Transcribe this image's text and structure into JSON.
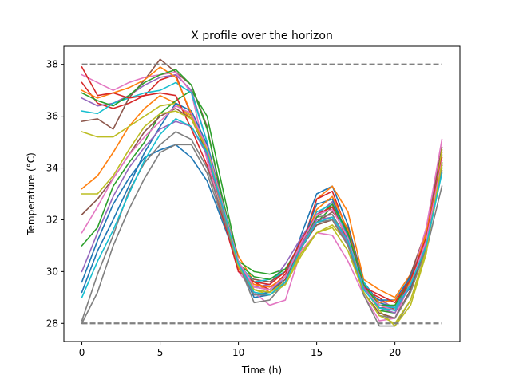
{
  "chart_data": {
    "type": "line",
    "title": "X profile over the horizon",
    "xlabel": "Time (h)",
    "ylabel": "Temperature (°C)",
    "xlim": [
      -1.15,
      24.15
    ],
    "ylim": [
      27.3,
      38.7
    ],
    "xticks": [
      0,
      5,
      10,
      15,
      20
    ],
    "yticks": [
      28,
      30,
      32,
      34,
      36,
      38
    ],
    "grid": false,
    "legend": "none",
    "bounds": {
      "color": "#808080",
      "lower": {
        "value": 28,
        "x": [
          0,
          23
        ]
      },
      "upper": {
        "value": 38,
        "x": [
          0,
          23
        ]
      }
    },
    "x": [
      0,
      1,
      2,
      3,
      4,
      5,
      6,
      7,
      8,
      9,
      10,
      11,
      12,
      13,
      14,
      15,
      16,
      17,
      18,
      19,
      20,
      21,
      22,
      23
    ],
    "series": [
      {
        "color": "#1f77b4",
        "values": [
          29.6,
          31.2,
          32.6,
          33.6,
          34.4,
          34.7,
          34.9,
          34.4,
          33.5,
          31.9,
          30.3,
          29.0,
          29.1,
          29.5,
          31.4,
          33.0,
          33.3,
          31.8,
          29.6,
          28.8,
          28.6,
          29.4,
          31.0,
          34.0
        ]
      },
      {
        "color": "#ff7f0e",
        "values": [
          33.2,
          33.7,
          34.6,
          35.6,
          36.3,
          36.8,
          36.5,
          35.9,
          34.6,
          32.5,
          30.6,
          29.6,
          29.2,
          29.6,
          30.8,
          32.8,
          33.3,
          32.3,
          29.7,
          29.3,
          29.0,
          29.9,
          31.4,
          34.1
        ]
      },
      {
        "color": "#2ca02c",
        "values": [
          31.0,
          31.7,
          33.3,
          34.2,
          35.0,
          36.1,
          36.6,
          37.0,
          36.0,
          33.2,
          30.4,
          30.0,
          29.9,
          30.1,
          31.0,
          31.9,
          32.5,
          31.5,
          29.4,
          28.5,
          28.4,
          29.6,
          31.1,
          34.0
        ]
      },
      {
        "color": "#d62728",
        "values": [
          37.3,
          36.5,
          36.3,
          36.5,
          36.8,
          37.4,
          37.6,
          36.0,
          34.5,
          32.3,
          30.0,
          29.6,
          29.3,
          29.9,
          30.9,
          32.8,
          33.1,
          31.5,
          29.3,
          29.0,
          28.5,
          29.7,
          31.6,
          34.6
        ]
      },
      {
        "color": "#9467bd",
        "values": [
          36.7,
          36.4,
          36.5,
          36.8,
          37.2,
          37.5,
          37.6,
          37.0,
          35.0,
          32.6,
          30.2,
          29.4,
          29.5,
          30.3,
          31.3,
          32.2,
          32.7,
          31.3,
          29.3,
          28.9,
          28.6,
          29.5,
          31.2,
          34.5
        ]
      },
      {
        "color": "#8c564b",
        "values": [
          35.8,
          35.9,
          35.5,
          36.7,
          37.4,
          38.2,
          37.7,
          37.2,
          35.6,
          32.6,
          30.1,
          29.7,
          29.6,
          30.0,
          30.9,
          31.9,
          32.3,
          31.7,
          29.6,
          28.6,
          28.6,
          29.9,
          31.6,
          34.8
        ]
      },
      {
        "color": "#e377c2",
        "values": [
          37.6,
          37.3,
          37.0,
          37.3,
          37.5,
          37.6,
          37.7,
          36.9,
          34.3,
          32.1,
          30.0,
          29.2,
          28.7,
          28.9,
          30.8,
          31.5,
          31.4,
          30.4,
          29.1,
          28.1,
          28.2,
          29.6,
          31.7,
          35.1
        ]
      },
      {
        "color": "#7f7f7f",
        "values": [
          28.0,
          29.2,
          31.0,
          32.4,
          33.6,
          34.6,
          34.9,
          34.9,
          33.8,
          32.0,
          30.3,
          28.8,
          28.9,
          29.6,
          31.0,
          32.1,
          32.2,
          31.2,
          29.1,
          27.9,
          27.9,
          28.9,
          30.8,
          33.3
        ]
      },
      {
        "color": "#bcbd22",
        "values": [
          35.4,
          35.2,
          35.2,
          35.6,
          36.0,
          36.4,
          36.5,
          36.0,
          34.6,
          32.3,
          30.2,
          29.3,
          29.1,
          29.5,
          30.6,
          31.5,
          31.8,
          31.1,
          29.4,
          28.5,
          27.9,
          28.7,
          30.7,
          34.7
        ]
      },
      {
        "color": "#17becf",
        "values": [
          36.2,
          36.1,
          36.5,
          36.7,
          36.9,
          37.0,
          37.3,
          36.9,
          35.0,
          32.4,
          30.3,
          29.6,
          29.7,
          30.0,
          31.0,
          32.3,
          32.6,
          31.4,
          29.6,
          28.7,
          28.6,
          29.8,
          31.2,
          34.2
        ]
      },
      {
        "color": "#1f77b4",
        "values": [
          29.2,
          30.8,
          32.0,
          33.3,
          34.6,
          35.6,
          36.5,
          36.2,
          34.9,
          32.6,
          30.2,
          29.1,
          29.2,
          29.8,
          31.0,
          32.6,
          32.8,
          31.4,
          29.3,
          28.9,
          28.9,
          29.8,
          31.2,
          34.1
        ]
      },
      {
        "color": "#ff7f0e",
        "values": [
          37.0,
          36.7,
          36.9,
          37.1,
          37.4,
          37.9,
          37.5,
          36.1,
          34.7,
          32.5,
          30.1,
          29.5,
          29.4,
          29.8,
          30.9,
          32.4,
          32.9,
          31.6,
          29.4,
          28.8,
          28.9,
          29.6,
          31.5,
          34.3
        ]
      },
      {
        "color": "#2ca02c",
        "values": [
          36.9,
          36.6,
          36.4,
          36.8,
          37.3,
          37.6,
          37.8,
          37.2,
          35.5,
          32.8,
          30.3,
          29.8,
          29.7,
          30.1,
          31.1,
          32.1,
          32.6,
          31.5,
          29.5,
          28.7,
          28.7,
          29.7,
          31.3,
          34.2
        ]
      },
      {
        "color": "#d62728",
        "values": [
          37.9,
          36.8,
          36.9,
          36.7,
          36.8,
          36.9,
          36.8,
          35.5,
          34.1,
          32.1,
          30.0,
          29.6,
          29.5,
          30.0,
          31.2,
          32.2,
          32.5,
          31.2,
          29.4,
          29.1,
          28.8,
          29.7,
          31.3,
          34.4
        ]
      },
      {
        "color": "#9467bd",
        "values": [
          30.0,
          31.5,
          32.9,
          34.0,
          34.8,
          35.5,
          35.8,
          35.6,
          34.5,
          32.4,
          30.3,
          29.4,
          29.3,
          29.8,
          31.0,
          32.0,
          32.1,
          31.1,
          29.4,
          28.6,
          28.4,
          29.5,
          31.1,
          34.0
        ]
      },
      {
        "color": "#8c564b",
        "values": [
          32.2,
          32.8,
          33.6,
          34.5,
          35.4,
          36.0,
          36.3,
          35.9,
          34.6,
          32.5,
          30.2,
          29.3,
          29.2,
          29.7,
          30.9,
          31.8,
          32.0,
          31.0,
          29.2,
          28.4,
          28.2,
          29.3,
          31.0,
          34.1
        ]
      },
      {
        "color": "#e377c2",
        "values": [
          31.5,
          32.5,
          33.6,
          34.5,
          35.2,
          35.8,
          36.4,
          36.1,
          34.8,
          32.6,
          30.4,
          29.4,
          29.3,
          29.8,
          31.1,
          32.2,
          32.4,
          31.3,
          29.3,
          28.7,
          28.5,
          29.5,
          31.2,
          34.3
        ]
      },
      {
        "color": "#7f7f7f",
        "values": [
          28.1,
          29.9,
          31.4,
          33.1,
          34.2,
          34.9,
          35.4,
          35.1,
          34.0,
          32.2,
          30.2,
          29.1,
          29.1,
          29.6,
          30.9,
          31.9,
          32.0,
          31.0,
          29.2,
          28.3,
          28.2,
          29.2,
          30.9,
          33.9
        ]
      },
      {
        "color": "#bcbd22",
        "values": [
          33.0,
          33.0,
          33.7,
          34.7,
          35.6,
          36.1,
          36.2,
          35.9,
          34.7,
          32.5,
          30.2,
          29.3,
          29.2,
          29.6,
          30.7,
          31.5,
          31.7,
          30.8,
          29.2,
          28.3,
          28.0,
          28.9,
          30.8,
          34.2
        ]
      },
      {
        "color": "#17becf",
        "values": [
          29.0,
          30.4,
          31.6,
          33.0,
          34.3,
          35.3,
          35.9,
          35.6,
          34.6,
          32.5,
          30.3,
          29.2,
          29.1,
          29.6,
          30.9,
          31.9,
          32.1,
          31.2,
          29.3,
          28.6,
          28.5,
          29.5,
          31.0,
          33.8
        ]
      }
    ]
  }
}
